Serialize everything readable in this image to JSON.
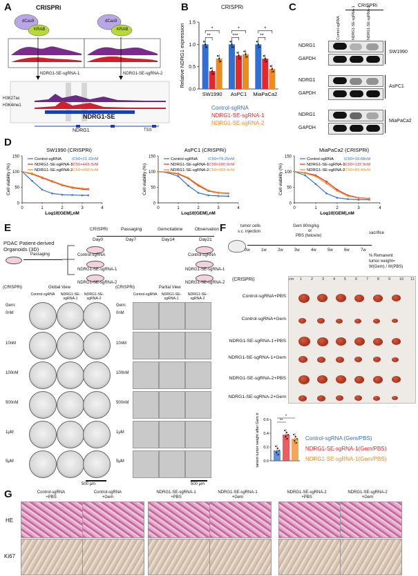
{
  "panels": {
    "A": "A",
    "B": "B",
    "C": "C",
    "D": "D",
    "E": "E",
    "F": "F",
    "G": "G"
  },
  "panel_a": {
    "title": "CRISPRi",
    "dcas9": "dCas9",
    "krab": "KRAB",
    "sg1": "NDRG1-SE-sgRNA-1",
    "sg2": "NDRG1-SE-sgRNA-2",
    "track1": "H3K27ac",
    "track2": "H3K4me1",
    "se": "NDRG1-SE",
    "gene": "NDRG1",
    "tss": "TSS"
  },
  "panel_b": {
    "title": "CRISPRi",
    "sig": [
      "*",
      "**",
      "*",
      "***",
      "*",
      "**"
    ],
    "legend": [
      {
        "label": "Control-sgRNA",
        "color": "#2f6fd6"
      },
      {
        "label": "NDRG1-SE-sgRNA-1",
        "color": "#e8262c"
      },
      {
        "label": "NDRG1-SE-sgRNA-2",
        "color": "#f08a1c"
      }
    ]
  },
  "panel_c": {
    "title": "CRISPRi",
    "lanes": [
      "Control-sgRNA",
      "NDRG1-SE-sgRNA-1",
      "NDRG1-SE-sgRNA-2"
    ],
    "blocks": [
      {
        "cell": "SW1990",
        "rows": [
          "NDRG1",
          "GAPDH"
        ]
      },
      {
        "cell": "AsPC1",
        "rows": [
          "NDRG1",
          "GAPDH"
        ]
      },
      {
        "cell": "MiaPaCa2",
        "rows": [
          "NDRG1",
          "GAPDH"
        ]
      }
    ]
  },
  "panel_e": {
    "intro_l1": "PDAC Patient-derived",
    "intro_l2": "Organoids (3D)",
    "passaging": "Passaging",
    "timeline_top": [
      "CRISPRi",
      "Passaging",
      "Gemcitabine",
      "Observation"
    ],
    "timeline_days": [
      "Day0",
      "Day7",
      "Day14",
      "Day21"
    ],
    "groups": [
      "Control-sgRNA",
      "NDRG1-SE-sgRNA-1",
      "NDRG1-SE-sgRNA-2"
    ],
    "crispri": "(CRISPRi)",
    "global_view": "Global View",
    "partial_view": "Partial View",
    "gem_label": "Gem:",
    "concs": [
      "0nM",
      "10nM",
      "100nM",
      "500nM",
      "1μM",
      "5μM"
    ],
    "cols": [
      "Control-sgRNA",
      "NDRG1-SE-sgRNA-1",
      "NDRG1-SE-sgRNA-2"
    ],
    "scale_global": "500 μm",
    "scale_partial": "500 μm"
  },
  "panel_f": {
    "tumor_cells": "tumor cells",
    "injection": "s.c. injection",
    "gem_dose": "Gem 80mg/kg",
    "or": "or",
    "pbs": "PBS (twice/w)",
    "sacrifice": "sacrifice",
    "weeks": [
      "0w",
      "1w",
      "2w",
      "3w",
      "4w",
      "5w",
      "6w",
      "7w"
    ],
    "formula_l1": "% Remanent",
    "formula_l2": "tumor weight=",
    "formula_l3": "W(Gem) / W(PBS)",
    "crispri": "(CRISPRi)",
    "ruler": [
      "cm",
      "1",
      "2",
      "3",
      "4",
      "5",
      "6",
      "7",
      "8",
      "9",
      "10",
      "11"
    ],
    "rows": [
      "Control-sgRNA+PBS",
      "Control-sgRNA+Gem",
      "NDRG1-SE-sgRNA-1+PBS",
      "NDRG1-SE-sgRNA-1+Gem",
      "NDRG1-SE-sgRNA-2+PBS",
      "NDRG1-SE-sgRNA-2+Gem"
    ],
    "sig": [
      "**",
      "*"
    ],
    "legend": [
      {
        "label": "Control-sgRNA (Gem/PBS)",
        "color": "#2f6fd6"
      },
      {
        "label": "NDRG1-SE-sgRNA-1(Gem/PBS)",
        "color": "#e8262c"
      },
      {
        "label": "NDRG1-SE-sgRNA-1(Gem/PBS)",
        "color": "#f08a1c"
      }
    ]
  },
  "panel_g": {
    "cols": [
      [
        "Control-sgRNA",
        "+PBS"
      ],
      [
        "Control-sgRNA",
        "+Gem"
      ],
      [
        "NDRG1-SE-sgRNA-1",
        "+PBS"
      ],
      [
        "NDRG1-SE-sgRNA-1",
        "+Gem"
      ],
      [
        "NDRG1-SE-sgRNA-2",
        "+PBS"
      ],
      [
        "NDRG1-SE-sgRNA-2",
        "+Gem"
      ]
    ],
    "rows": [
      "HE",
      "Ki67"
    ]
  },
  "chart_data": [
    {
      "id": "B",
      "type": "bar",
      "ylabel": "Relative NDRG1 expression",
      "ylim": [
        0,
        1.5
      ],
      "yticks": [
        "0.0",
        "0.5",
        "1.0",
        "1.5"
      ],
      "categories": [
        "SW1990",
        "AsPC1",
        "MiaPaCa2"
      ],
      "series": [
        {
          "name": "Control-sgRNA",
          "values": [
            1.0,
            1.0,
            1.0
          ],
          "color": "#2f6fd6"
        },
        {
          "name": "NDRG1-SE-sgRNA-1",
          "values": [
            0.4,
            0.75,
            0.68
          ],
          "color": "#e8262c"
        },
        {
          "name": "NDRG1-SE-sgRNA-2",
          "values": [
            0.68,
            0.78,
            0.45
          ],
          "color": "#f08a1c"
        }
      ]
    },
    {
      "id": "D1",
      "type": "line",
      "title": "SW1990 (CRISPRi)",
      "xlabel": "Log10[GEM],nM",
      "ylabel": "Cell viability (%)",
      "xlim": [
        0,
        4
      ],
      "ylim": [
        0,
        150
      ],
      "yticks": [
        "0",
        "50",
        "100",
        "150"
      ],
      "xticks": [
        "0",
        "1",
        "2",
        "3",
        "4"
      ],
      "series": [
        {
          "name": "Control-sgRNA",
          "ic50": "IC50=21.22nM",
          "color": "#2f6fd6",
          "x": [
            0,
            0.5,
            1,
            1.5,
            2,
            2.5,
            3,
            3.3
          ],
          "y": [
            100,
            70,
            42,
            30,
            26,
            25,
            24,
            24
          ]
        },
        {
          "name": "NDRG1-SE-sgRNA-1",
          "ic50": "IC50=443.3nM",
          "color": "#e8262c",
          "x": [
            0,
            0.5,
            1,
            1.5,
            2,
            2.5,
            3,
            3.3
          ],
          "y": [
            100,
            92,
            80,
            68,
            56,
            48,
            44,
            43
          ]
        },
        {
          "name": "NDRG1-SE-sgRNA-2",
          "ic50": "IC50=498.6nM",
          "color": "#f08a1c",
          "x": [
            0,
            0.5,
            1,
            1.5,
            2,
            2.5,
            3,
            3.3
          ],
          "y": [
            100,
            94,
            82,
            70,
            58,
            50,
            46,
            45
          ]
        }
      ]
    },
    {
      "id": "D2",
      "type": "line",
      "title": "AsPC1 (CRISPRi)",
      "xlabel": "Log10[GEM],nM",
      "ylabel": "Cell viability (%)",
      "xlim": [
        0,
        4
      ],
      "ylim": [
        0,
        150
      ],
      "yticks": [
        "0",
        "50",
        "100",
        "150"
      ],
      "xticks": [
        "0",
        "1",
        "2",
        "3",
        "4"
      ],
      "series": [
        {
          "name": "Control-sgRNA",
          "ic50": "IC50=79.25nM",
          "color": "#2f6fd6",
          "x": [
            0,
            0.5,
            1,
            1.5,
            2,
            2.5,
            3,
            3.5
          ],
          "y": [
            100,
            96,
            85,
            55,
            32,
            24,
            22,
            21
          ]
        },
        {
          "name": "NDRG1-SE-sgRNA-1",
          "ic50": "IC50=260.9nM",
          "color": "#e8262c",
          "x": [
            0,
            0.5,
            1,
            1.5,
            2,
            2.5,
            3,
            3.5
          ],
          "y": [
            100,
            98,
            92,
            78,
            55,
            38,
            32,
            30
          ]
        },
        {
          "name": "NDRG1-SE-sgRNA-2",
          "ic50": "IC50=303.4nM",
          "color": "#f08a1c",
          "x": [
            0,
            0.5,
            1,
            1.5,
            2,
            2.5,
            3,
            3.5
          ],
          "y": [
            100,
            98,
            94,
            80,
            58,
            40,
            33,
            31
          ]
        }
      ]
    },
    {
      "id": "D3",
      "type": "line",
      "title": "MiaPaCa2 (CRISPRi)",
      "xlabel": "Log10[GEM],nM",
      "ylabel": "Cell viability (%)",
      "xlim": [
        0,
        4
      ],
      "ylim": [
        0,
        150
      ],
      "yticks": [
        "0",
        "50",
        "100",
        "150"
      ],
      "xticks": [
        "0",
        "1",
        "2",
        "3",
        "4"
      ],
      "series": [
        {
          "name": "Control-sgRNA",
          "ic50": "IC50=18.68nM",
          "color": "#2f6fd6",
          "x": [
            0,
            0.5,
            1,
            1.5,
            2,
            2.5,
            3,
            3.5
          ],
          "y": [
            100,
            88,
            60,
            30,
            16,
            12,
            10,
            10
          ]
        },
        {
          "name": "NDRG1-SE-sgRNA-1",
          "ic50": "IC50=122.9nM",
          "color": "#e8262c",
          "x": [
            0,
            0.5,
            1,
            1.5,
            2,
            2.5,
            3,
            3.5
          ],
          "y": [
            100,
            96,
            88,
            68,
            42,
            24,
            16,
            14
          ]
        },
        {
          "name": "NDRG1-SE-sgRNA-2",
          "ic50": "IC50=89.40nM",
          "color": "#f08a1c",
          "x": [
            0,
            0.5,
            1,
            1.5,
            2,
            2.5,
            3,
            3.5
          ],
          "y": [
            100,
            95,
            85,
            62,
            38,
            22,
            15,
            13
          ]
        }
      ]
    },
    {
      "id": "F",
      "type": "bar",
      "ylabel": "(%) Remanent tumor weight after Gem treatment",
      "ylim": [
        0,
        0.6
      ],
      "yticks": [
        "0.0",
        "0.2",
        "0.4",
        "0.6"
      ],
      "categories": [
        "Control-sgRNA",
        "NDRG1-SE-sgRNA-1",
        "NDRG1-SE-sgRNA-2"
      ],
      "values": [
        0.15,
        0.38,
        0.32
      ],
      "colors": [
        "#2f6fd6",
        "#e8262c",
        "#f08a1c"
      ]
    }
  ]
}
